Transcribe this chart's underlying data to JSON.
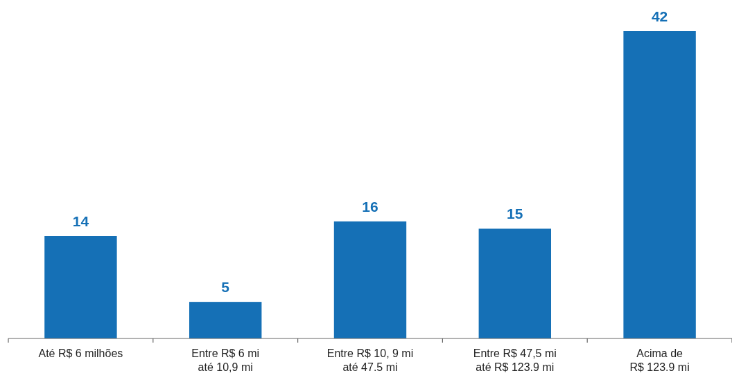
{
  "chart_data": {
    "type": "bar",
    "categories": [
      "Até R$ 6 milhões",
      "Entre R$ 6 mi\naté 10,9 mi",
      "Entre R$ 10, 9 mi\naté 47.5 mi",
      "Entre R$ 47,5 mi\naté R$ 123.9 mi",
      "Acima de\nR$ 123.9 mi"
    ],
    "values": [
      14,
      5,
      16,
      15,
      42
    ],
    "color": "#1570b6",
    "data_labels": true
  }
}
